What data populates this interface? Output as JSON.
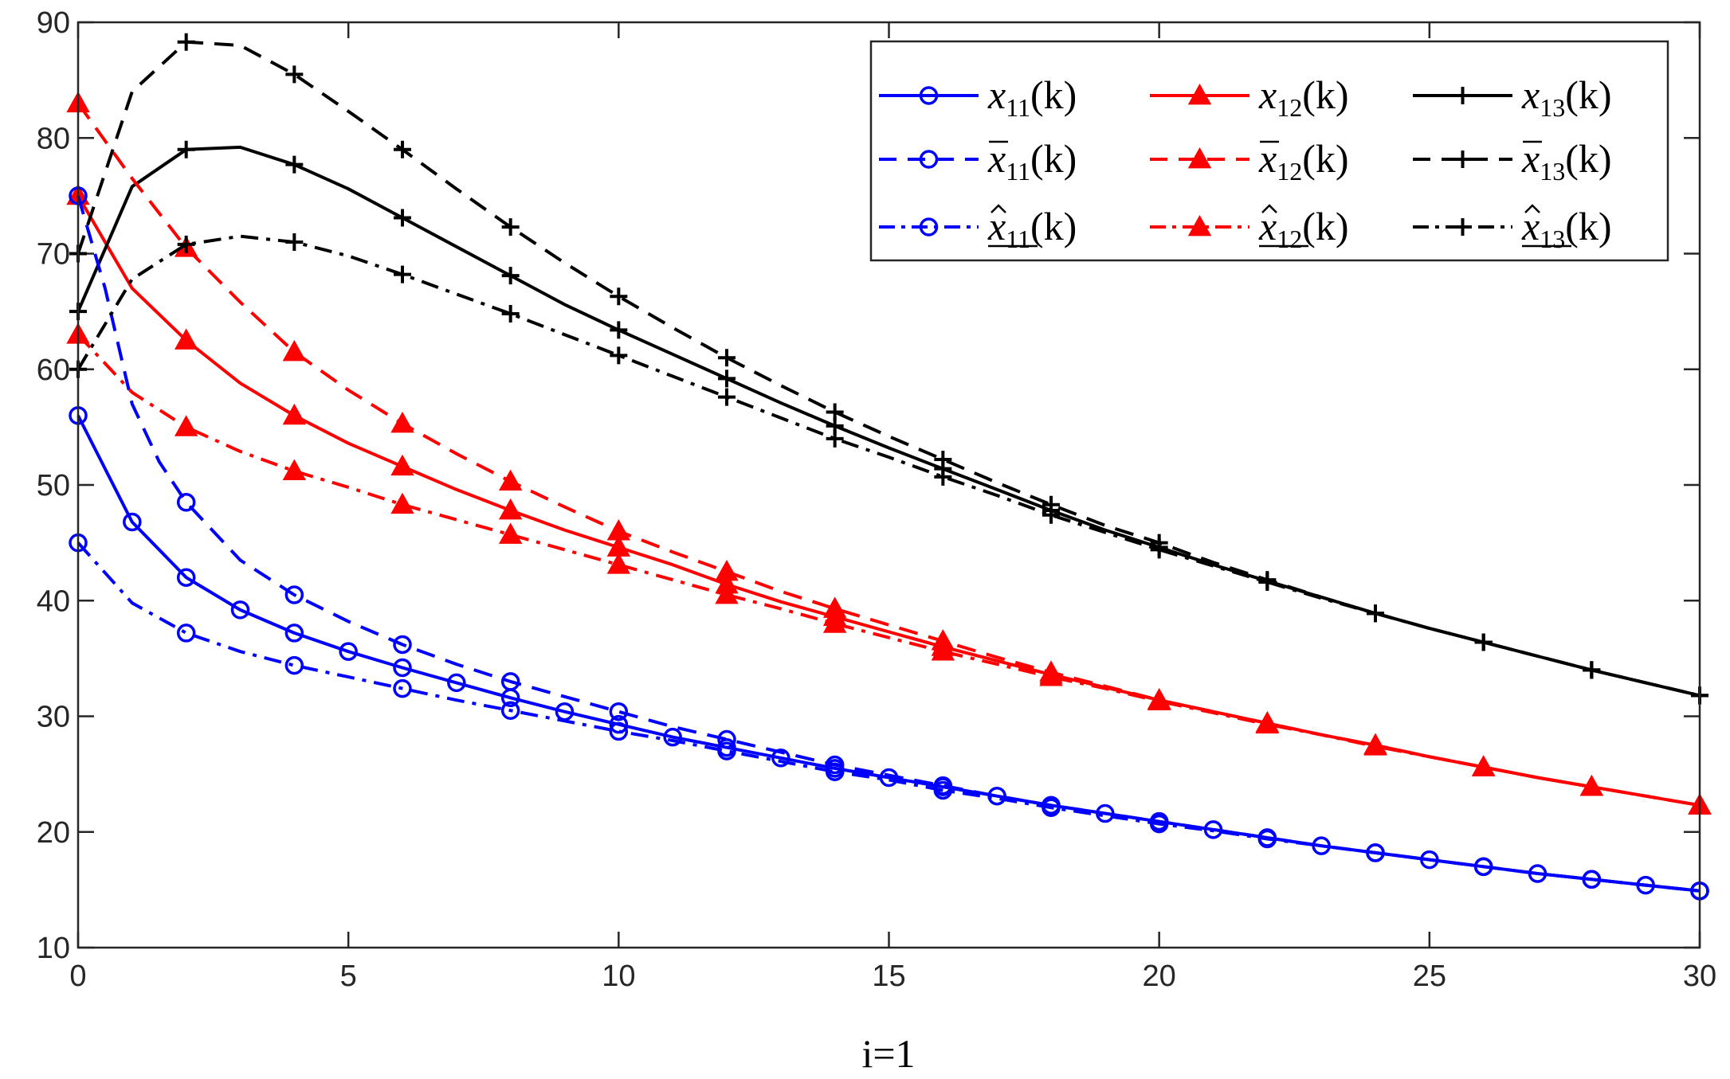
{
  "chart_data": {
    "type": "line",
    "title": "",
    "xlabel": "i=1",
    "ylabel": "",
    "xlim": [
      0,
      30
    ],
    "ylim": [
      10,
      90
    ],
    "xticks": [
      0,
      5,
      10,
      15,
      20,
      25,
      30
    ],
    "yticks": [
      10,
      20,
      30,
      40,
      50,
      60,
      70,
      80,
      90
    ],
    "grid": false,
    "legend_position": "top-right",
    "series": [
      {
        "name": "x11(k)",
        "label_main": "x",
        "label_sub": "11",
        "label_tail": "(k)",
        "accent": "",
        "color": "#0000ff",
        "dash": "solid",
        "marker": "circle",
        "marker_every": 1,
        "x": [
          0,
          1,
          2,
          3,
          4,
          5,
          6,
          7,
          8,
          9,
          10,
          11,
          12,
          13,
          14,
          15,
          16,
          17,
          18,
          19,
          20,
          21,
          22,
          23,
          24,
          25,
          26,
          27,
          28,
          29,
          30
        ],
        "y": [
          56,
          46.8,
          42,
          39.2,
          37.2,
          35.6,
          34.2,
          32.9,
          31.6,
          30.4,
          29.3,
          28.2,
          27.3,
          26.4,
          25.5,
          24.7,
          23.9,
          23.1,
          22.3,
          21.6,
          20.9,
          20.2,
          19.5,
          18.8,
          18.2,
          17.6,
          17,
          16.4,
          15.9,
          15.4,
          14.9
        ]
      },
      {
        "name": "x12(k)",
        "label_main": "x",
        "label_sub": "12",
        "label_tail": "(k)",
        "accent": "",
        "color": "#ff0000",
        "dash": "solid",
        "marker": "triangle",
        "marker_every": 2,
        "x": [
          0,
          1,
          2,
          3,
          4,
          5,
          6,
          7,
          8,
          9,
          10,
          11,
          12,
          13,
          14,
          15,
          16,
          17,
          18,
          19,
          20,
          21,
          22,
          23,
          24,
          25,
          26,
          27,
          28,
          29,
          30
        ],
        "y": [
          75,
          67,
          62.5,
          58.8,
          56,
          53.6,
          51.6,
          49.6,
          47.8,
          46.1,
          44.6,
          43.1,
          41.4,
          39.9,
          38.6,
          37.3,
          36,
          34.8,
          33.6,
          32.5,
          31.4,
          30.4,
          29.4,
          28.4,
          27.5,
          26.5,
          25.6,
          24.7,
          23.9,
          23.1,
          22.3
        ]
      },
      {
        "name": "x13(k)",
        "label_main": "x",
        "label_sub": "13",
        "label_tail": "(k)",
        "accent": "",
        "color": "#000000",
        "dash": "solid",
        "marker": "plus",
        "marker_every": 2,
        "x": [
          0,
          1,
          2,
          3,
          4,
          5,
          6,
          7,
          8,
          9,
          10,
          11,
          12,
          13,
          14,
          15,
          16,
          17,
          18,
          19,
          20,
          21,
          22,
          23,
          24,
          25,
          26,
          27,
          28,
          29,
          30
        ],
        "y": [
          65,
          75.8,
          79,
          79.2,
          77.7,
          75.6,
          73.1,
          70.6,
          68.1,
          65.6,
          63.4,
          61.3,
          59.2,
          57.1,
          55.1,
          53.2,
          51.4,
          49.6,
          47.8,
          46.1,
          44.6,
          43.1,
          41.7,
          40.3,
          38.9,
          37.6,
          36.4,
          35.2,
          34,
          32.9,
          31.8
        ]
      },
      {
        "name": "x̄11(k)",
        "label_main": "x",
        "label_sub": "11",
        "label_tail": "(k)",
        "accent": "bar",
        "color": "#0000ff",
        "dash": "dashed",
        "marker": "circle",
        "marker_every": 2,
        "x": [
          0,
          0.5,
          1,
          1.5,
          2,
          3,
          4,
          5,
          6,
          7,
          8,
          9,
          10,
          11,
          12,
          13,
          14,
          15,
          16,
          17,
          18,
          19,
          20,
          21,
          22,
          23,
          24,
          25,
          26,
          27,
          28,
          29,
          30
        ],
        "y": [
          75,
          67,
          57,
          52,
          48.5,
          43.5,
          40.5,
          38.2,
          36.2,
          34.5,
          33,
          31.7,
          30.4,
          29.1,
          28,
          26.9,
          25.8,
          24.9,
          24,
          23.1,
          22.3,
          21.6,
          20.9,
          20.2,
          19.5,
          18.8,
          18.2,
          17.6,
          17,
          16.4,
          15.9,
          15.4,
          14.9
        ]
      },
      {
        "name": "x̄12(k)",
        "label_main": "x",
        "label_sub": "12",
        "label_tail": "(k)",
        "accent": "bar",
        "color": "#ff0000",
        "dash": "dashed",
        "marker": "triangle",
        "marker_every": 2,
        "x": [
          0,
          1,
          2,
          3,
          4,
          5,
          6,
          7,
          8,
          9,
          10,
          11,
          12,
          13,
          14,
          15,
          16,
          17,
          18,
          19,
          20,
          21,
          22,
          23,
          24,
          25,
          26,
          27,
          28,
          29,
          30
        ],
        "y": [
          83,
          76.5,
          70.5,
          65.8,
          61.5,
          58.2,
          55.3,
          52.7,
          50.3,
          48.1,
          46,
          44.2,
          42.5,
          40.8,
          39.3,
          37.9,
          36.5,
          35.1,
          33.8,
          32.6,
          31.4,
          30.4,
          29.4,
          28.4,
          27.5,
          26.5,
          25.6,
          24.7,
          23.9,
          23.1,
          22.3
        ]
      },
      {
        "name": "x̄13(k)",
        "label_main": "x",
        "label_sub": "13",
        "label_tail": "(k)",
        "accent": "bar",
        "color": "#000000",
        "dash": "dashed",
        "marker": "plus",
        "marker_every": 2,
        "x": [
          0,
          1,
          2,
          3,
          4,
          5,
          6,
          7,
          8,
          9,
          10,
          11,
          12,
          13,
          14,
          15,
          16,
          17,
          18,
          19,
          20,
          21,
          22,
          23,
          24,
          25,
          26,
          27,
          28,
          29,
          30
        ],
        "y": [
          70,
          84,
          88.3,
          88,
          85.5,
          82.3,
          79,
          75.6,
          72.3,
          69.2,
          66.3,
          63.6,
          61,
          58.6,
          56.3,
          54.2,
          52.2,
          50.2,
          48.3,
          46.5,
          45,
          43.3,
          41.8,
          40.3,
          38.9,
          37.6,
          36.4,
          35.2,
          34,
          32.9,
          31.8
        ]
      },
      {
        "name": "x̂11(k)",
        "label_main": "x",
        "label_sub": "11",
        "label_tail": "(k)",
        "accent": "hat",
        "color": "#0000ff",
        "dash": "dashdot",
        "marker": "circle",
        "marker_every": 2,
        "x": [
          0,
          1,
          2,
          3,
          4,
          5,
          6,
          7,
          8,
          9,
          10,
          11,
          12,
          13,
          14,
          15,
          16,
          17,
          18,
          19,
          20,
          21,
          22,
          23,
          24,
          25,
          26,
          27,
          28,
          29,
          30
        ],
        "y": [
          45,
          39.8,
          37.2,
          35.6,
          34.4,
          33.4,
          32.4,
          31.4,
          30.5,
          29.6,
          28.7,
          27.9,
          27,
          26.1,
          25.2,
          24.5,
          23.6,
          22.9,
          22.1,
          21.4,
          20.7,
          20.1,
          19.4,
          18.8,
          18.2,
          17.6,
          17,
          16.4,
          15.9,
          15.4,
          14.9
        ]
      },
      {
        "name": "x̂12(k)",
        "label_main": "x",
        "label_sub": "12",
        "label_tail": "(k)",
        "accent": "hat",
        "color": "#ff0000",
        "dash": "dashdot",
        "marker": "triangle",
        "marker_every": 2,
        "x": [
          0,
          1,
          2,
          3,
          4,
          5,
          6,
          7,
          8,
          9,
          10,
          11,
          12,
          13,
          14,
          15,
          16,
          17,
          18,
          19,
          20,
          21,
          22,
          23,
          24,
          25,
          26,
          27,
          28,
          29,
          30
        ],
        "y": [
          63,
          58,
          55,
          52.9,
          51.2,
          49.8,
          48.3,
          47,
          45.7,
          44.4,
          43.1,
          41.8,
          40.5,
          39.3,
          38,
          36.8,
          35.6,
          34.5,
          33.4,
          32.4,
          31.3,
          30.3,
          29.3,
          28.4,
          27.4,
          26.5,
          25.6,
          24.7,
          23.9,
          23.1,
          22.3
        ]
      },
      {
        "name": "x̂13(k)",
        "label_main": "x",
        "label_sub": "13",
        "label_tail": "(k)",
        "accent": "hat",
        "color": "#000000",
        "dash": "dashdot",
        "marker": "plus",
        "marker_every": 2,
        "x": [
          0,
          1,
          2,
          3,
          4,
          5,
          6,
          7,
          8,
          9,
          10,
          11,
          12,
          13,
          14,
          15,
          16,
          17,
          18,
          19,
          20,
          21,
          22,
          23,
          24,
          25,
          26,
          27,
          28,
          29,
          30
        ],
        "y": [
          60,
          67.8,
          70.8,
          71.5,
          71,
          69.8,
          68.2,
          66.5,
          64.8,
          63,
          61.2,
          59.4,
          57.6,
          55.8,
          54,
          52.4,
          50.7,
          49.1,
          47.4,
          45.9,
          44.4,
          43,
          41.6,
          40.2,
          38.9,
          37.6,
          36.4,
          35.2,
          34,
          32.9,
          31.8
        ]
      }
    ]
  }
}
